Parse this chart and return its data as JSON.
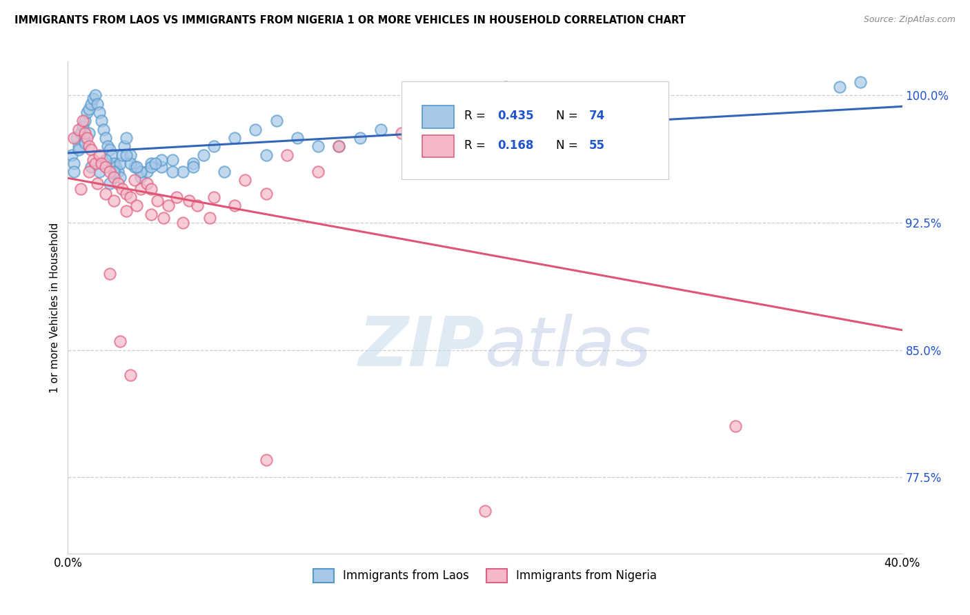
{
  "title": "IMMIGRANTS FROM LAOS VS IMMIGRANTS FROM NIGERIA 1 OR MORE VEHICLES IN HOUSEHOLD CORRELATION CHART",
  "source": "Source: ZipAtlas.com",
  "ylabel_label": "1 or more Vehicles in Household",
  "legend_blue_label": "Immigrants from Laos",
  "legend_pink_label": "Immigrants from Nigeria",
  "R_blue": 0.435,
  "N_blue": 74,
  "R_pink": 0.168,
  "N_pink": 55,
  "blue_color": "#a8c8e8",
  "pink_color": "#f4b8c8",
  "blue_edge_color": "#5599cc",
  "pink_edge_color": "#e06080",
  "blue_line_color": "#3366bb",
  "pink_line_color": "#e05575",
  "watermark_zip": "ZIP",
  "watermark_atlas": "atlas",
  "xmin": 0.0,
  "xmax": 40.0,
  "ymin": 73.0,
  "ymax": 102.0,
  "yticks": [
    77.5,
    85.0,
    92.5,
    100.0
  ],
  "blue_scatter_x": [
    0.2,
    0.3,
    0.4,
    0.5,
    0.6,
    0.7,
    0.8,
    0.9,
    1.0,
    1.1,
    1.2,
    1.3,
    1.4,
    1.5,
    1.6,
    1.7,
    1.8,
    1.9,
    2.0,
    2.1,
    2.2,
    2.3,
    2.4,
    2.5,
    2.6,
    2.7,
    2.8,
    3.0,
    3.2,
    3.5,
    3.8,
    4.0,
    4.5,
    5.0,
    5.5,
    6.0,
    6.5,
    7.0,
    8.0,
    9.0,
    10.0,
    11.0,
    13.0,
    14.0,
    15.0,
    16.5,
    19.0,
    22.0,
    37.0,
    0.3,
    0.5,
    0.8,
    1.1,
    1.5,
    2.0,
    2.5,
    3.0,
    3.5,
    4.0,
    4.5,
    5.0,
    6.0,
    7.5,
    9.5,
    12.0,
    18.0,
    25.0,
    38.0,
    1.0,
    1.8,
    2.2,
    2.8,
    3.3,
    4.2
  ],
  "blue_scatter_y": [
    96.5,
    96.0,
    97.5,
    97.0,
    97.8,
    98.2,
    98.5,
    99.0,
    99.2,
    99.5,
    99.8,
    100.0,
    99.5,
    99.0,
    98.5,
    98.0,
    97.5,
    97.0,
    96.8,
    96.5,
    96.0,
    95.8,
    95.5,
    96.0,
    96.5,
    97.0,
    97.5,
    96.5,
    95.8,
    95.2,
    95.5,
    96.0,
    95.8,
    96.2,
    95.5,
    96.0,
    96.5,
    97.0,
    97.5,
    98.0,
    98.5,
    97.5,
    97.0,
    97.5,
    98.0,
    97.8,
    98.5,
    96.5,
    100.5,
    95.5,
    96.8,
    97.2,
    95.8,
    95.5,
    94.8,
    95.2,
    96.0,
    95.5,
    95.8,
    96.2,
    95.5,
    95.8,
    95.5,
    96.5,
    97.0,
    97.5,
    98.0,
    100.8,
    97.8,
    96.2,
    95.5,
    96.5,
    95.8,
    96.0
  ],
  "pink_scatter_x": [
    0.3,
    0.5,
    0.7,
    0.8,
    0.9,
    1.0,
    1.1,
    1.2,
    1.3,
    1.5,
    1.6,
    1.8,
    2.0,
    2.2,
    2.4,
    2.6,
    2.8,
    3.0,
    3.2,
    3.5,
    3.8,
    4.0,
    4.3,
    4.8,
    5.2,
    5.8,
    6.2,
    7.0,
    8.5,
    10.5,
    13.0,
    16.0,
    21.0,
    0.6,
    1.0,
    1.4,
    1.8,
    2.2,
    2.8,
    3.3,
    4.0,
    4.6,
    5.5,
    6.8,
    8.0,
    9.5,
    12.0,
    17.0,
    24.0,
    32.0,
    2.0,
    2.5,
    3.0,
    9.5,
    20.0
  ],
  "pink_scatter_y": [
    97.5,
    98.0,
    98.5,
    97.8,
    97.5,
    97.0,
    96.8,
    96.2,
    96.0,
    96.5,
    96.0,
    95.8,
    95.5,
    95.2,
    94.8,
    94.5,
    94.2,
    94.0,
    95.0,
    94.5,
    94.8,
    94.5,
    93.8,
    93.5,
    94.0,
    93.8,
    93.5,
    94.0,
    95.0,
    96.5,
    97.0,
    97.8,
    100.5,
    94.5,
    95.5,
    94.8,
    94.2,
    93.8,
    93.2,
    93.5,
    93.0,
    92.8,
    92.5,
    92.8,
    93.5,
    94.2,
    95.5,
    96.5,
    97.5,
    80.5,
    89.5,
    85.5,
    83.5,
    78.5,
    75.5
  ]
}
